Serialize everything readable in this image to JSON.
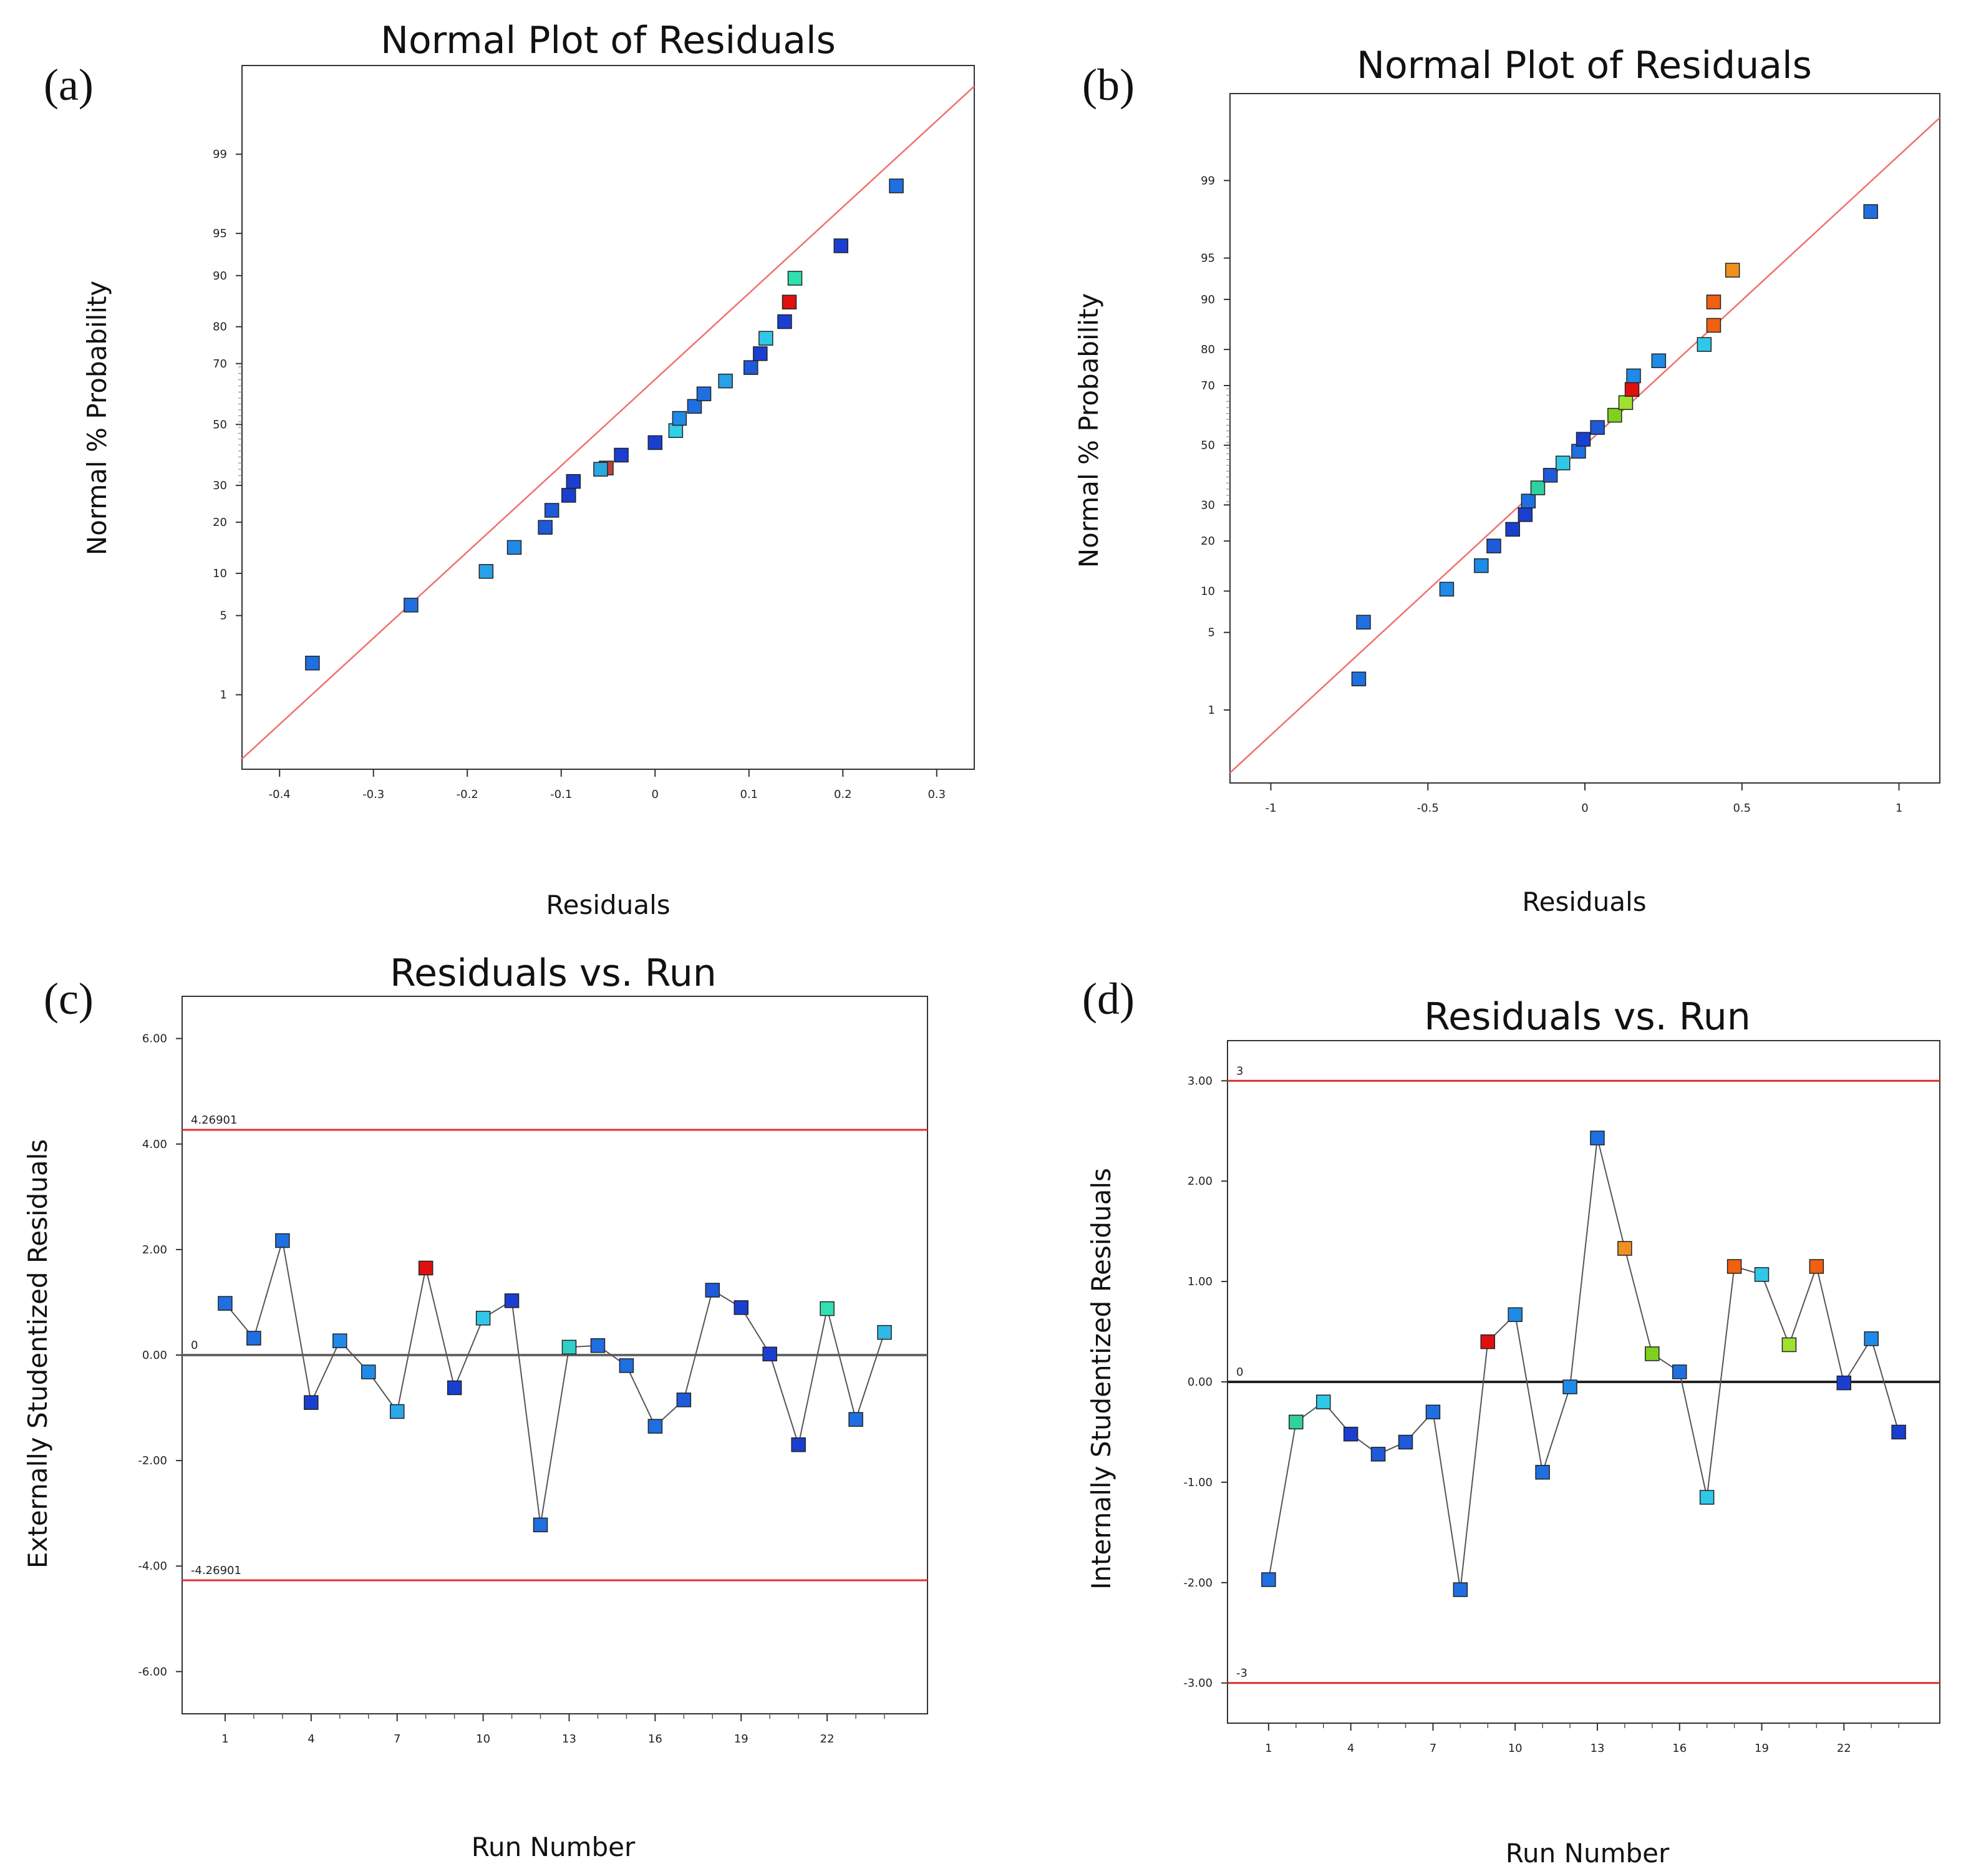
{
  "panel_labels": [
    "(a)",
    "(b)",
    "(c)",
    "(d)"
  ],
  "chart_data": [
    {
      "type": "scatter",
      "panel": "(a)",
      "title": "Normal Plot of Residuals",
      "xlabel": "Residuals",
      "ylabel": "Normal % Probability",
      "xlim": [
        -0.44,
        0.34
      ],
      "x_ticks": [
        -0.4,
        -0.3,
        -0.2,
        -0.1,
        0,
        0.1,
        0.2,
        0.3
      ],
      "x_tick_labels": [
        "-0.4",
        "-0.3",
        "-0.2",
        "-0.1",
        "0",
        "0.1",
        "0.2",
        "0.3"
      ],
      "y_scale": "normal-probability",
      "ylim": [
        0.15,
        99.9
      ],
      "y_ticks": [
        1,
        5,
        10,
        20,
        30,
        50,
        70,
        80,
        90,
        95,
        99
      ],
      "y_tick_labels": [
        "1",
        "5",
        "10",
        "20",
        "30",
        "50",
        "70",
        "80",
        "90",
        "95",
        "99"
      ],
      "fit_line": {
        "x": [
          -0.44,
          0.34
        ],
        "y": [
          0.2,
          99.82
        ],
        "color": "#f07070"
      },
      "points": [
        {
          "x": -0.365,
          "y": 2.0,
          "color": "#1f6fe0"
        },
        {
          "x": -0.26,
          "y": 6.0,
          "color": "#1f6fe0"
        },
        {
          "x": -0.18,
          "y": 10.3,
          "color": "#2aa0e8"
        },
        {
          "x": -0.15,
          "y": 14.5,
          "color": "#1f8ae8"
        },
        {
          "x": -0.117,
          "y": 18.8,
          "color": "#1f5ad8"
        },
        {
          "x": -0.11,
          "y": 23.0,
          "color": "#1f5ad8"
        },
        {
          "x": -0.092,
          "y": 27.1,
          "color": "#1a3fd0"
        },
        {
          "x": -0.087,
          "y": 31.2,
          "color": "#1a3fd0"
        },
        {
          "x": -0.052,
          "y": 35.4,
          "color": "#c04040"
        },
        {
          "x": -0.058,
          "y": 35.0,
          "color": "#2aa8e0"
        },
        {
          "x": -0.036,
          "y": 39.6,
          "color": "#1a3fd0"
        },
        {
          "x": 0.0,
          "y": 43.8,
          "color": "#1a3fd0"
        },
        {
          "x": 0.022,
          "y": 47.9,
          "color": "#30d0e8"
        },
        {
          "x": 0.026,
          "y": 52.1,
          "color": "#1f8ae8"
        },
        {
          "x": 0.042,
          "y": 56.2,
          "color": "#1f6fe0"
        },
        {
          "x": 0.052,
          "y": 60.4,
          "color": "#1f6fe0"
        },
        {
          "x": 0.075,
          "y": 64.6,
          "color": "#2aa0e8"
        },
        {
          "x": 0.102,
          "y": 68.8,
          "color": "#1f5ad8"
        },
        {
          "x": 0.112,
          "y": 72.9,
          "color": "#1a3fd0"
        },
        {
          "x": 0.118,
          "y": 77.1,
          "color": "#30c8e8"
        },
        {
          "x": 0.138,
          "y": 81.2,
          "color": "#1a3fd0"
        },
        {
          "x": 0.143,
          "y": 85.4,
          "color": "#e01010"
        },
        {
          "x": 0.149,
          "y": 89.6,
          "color": "#30e0b0"
        },
        {
          "x": 0.198,
          "y": 93.8,
          "color": "#1a3fd0"
        },
        {
          "x": 0.257,
          "y": 98.0,
          "color": "#1f6fe0"
        }
      ]
    },
    {
      "type": "scatter",
      "panel": "(b)",
      "title": "Normal Plot of Residuals",
      "xlabel": "Residuals",
      "ylabel": "Normal % Probability",
      "xlim": [
        -1.13,
        1.13
      ],
      "x_ticks": [
        -1,
        -0.5,
        0,
        0.5,
        1
      ],
      "x_tick_labels": [
        "-1",
        "-0.5",
        "0",
        "0.5",
        "1"
      ],
      "y_scale": "normal-probability",
      "ylim": [
        0.15,
        99.9
      ],
      "y_ticks": [
        1,
        5,
        10,
        20,
        30,
        50,
        70,
        80,
        90,
        95,
        99
      ],
      "y_tick_labels": [
        "1",
        "5",
        "10",
        "20",
        "30",
        "50",
        "70",
        "80",
        "90",
        "95",
        "99"
      ],
      "fit_line": {
        "x": [
          -1.13,
          1.13
        ],
        "y": [
          0.2,
          99.8
        ],
        "color": "#f07070"
      },
      "points": [
        {
          "x": -0.72,
          "y": 2.0,
          "color": "#1f6fe0"
        },
        {
          "x": -0.705,
          "y": 6.0,
          "color": "#1f6fe0"
        },
        {
          "x": -0.44,
          "y": 10.3,
          "color": "#1f8ae8"
        },
        {
          "x": -0.33,
          "y": 14.5,
          "color": "#1f8ae8"
        },
        {
          "x": -0.29,
          "y": 18.8,
          "color": "#1f5ad8"
        },
        {
          "x": -0.23,
          "y": 23.0,
          "color": "#1a3fd0"
        },
        {
          "x": -0.19,
          "y": 27.1,
          "color": "#1a3fd0"
        },
        {
          "x": -0.18,
          "y": 31.2,
          "color": "#1f6fe0"
        },
        {
          "x": -0.15,
          "y": 35.4,
          "color": "#30d0a0"
        },
        {
          "x": -0.11,
          "y": 39.6,
          "color": "#1f5ad8"
        },
        {
          "x": -0.07,
          "y": 43.8,
          "color": "#30c8e8"
        },
        {
          "x": -0.02,
          "y": 47.9,
          "color": "#1f6fe0"
        },
        {
          "x": -0.005,
          "y": 52.1,
          "color": "#1a3fd0"
        },
        {
          "x": 0.04,
          "y": 56.2,
          "color": "#1f5ad8"
        },
        {
          "x": 0.095,
          "y": 60.4,
          "color": "#80d020"
        },
        {
          "x": 0.13,
          "y": 64.6,
          "color": "#a0e030"
        },
        {
          "x": 0.15,
          "y": 68.8,
          "color": "#e01010"
        },
        {
          "x": 0.155,
          "y": 72.9,
          "color": "#1f8ae8"
        },
        {
          "x": 0.235,
          "y": 77.1,
          "color": "#1f8ae8"
        },
        {
          "x": 0.38,
          "y": 81.2,
          "color": "#30c8e8"
        },
        {
          "x": 0.41,
          "y": 85.4,
          "color": "#f06010"
        },
        {
          "x": 0.41,
          "y": 89.6,
          "color": "#f06010"
        },
        {
          "x": 0.47,
          "y": 93.8,
          "color": "#f09020"
        },
        {
          "x": 0.91,
          "y": 98.0,
          "color": "#1f6fe0"
        }
      ]
    },
    {
      "type": "line",
      "panel": "(c)",
      "title": "Residuals vs. Run",
      "xlabel": "Run Number",
      "ylabel": "Externally Studentized Residuals",
      "xlim": [
        -0.5,
        25.5
      ],
      "x_ticks": [
        1,
        4,
        7,
        10,
        13,
        16,
        19,
        22
      ],
      "x_tick_labels": [
        "1",
        "4",
        "7",
        "10",
        "13",
        "16",
        "19",
        "22"
      ],
      "ylim": [
        -6.8,
        6.8
      ],
      "y_ticks": [
        6,
        4,
        2,
        0,
        -2,
        -4,
        -6
      ],
      "y_tick_labels": [
        "6.00",
        "4.00",
        "2.00",
        "0.00",
        "-2.00",
        "-4.00",
        "-6.00"
      ],
      "reference_lines": [
        {
          "value": 4.26901,
          "label": "4.26901",
          "color": "#e03030"
        },
        {
          "value": 0,
          "label": "0",
          "color": "#666666"
        },
        {
          "value": -4.26901,
          "label": "-4.26901",
          "color": "#e03030"
        }
      ],
      "x": [
        1,
        2,
        3,
        4,
        5,
        6,
        7,
        8,
        9,
        10,
        11,
        12,
        13,
        14,
        15,
        16,
        17,
        18,
        19,
        20,
        21,
        22,
        23,
        24
      ],
      "values": [
        0.98,
        0.32,
        2.17,
        -0.9,
        0.27,
        -0.32,
        -1.07,
        1.65,
        -0.62,
        0.7,
        1.03,
        -3.22,
        0.15,
        0.18,
        -0.2,
        -1.35,
        -0.85,
        1.23,
        0.9,
        0.02,
        -1.7,
        0.88,
        -1.22,
        0.43
      ],
      "colors": [
        "#1f6fe0",
        "#1f6fe0",
        "#1f6fe0",
        "#1a3fd0",
        "#1f8ae8",
        "#1f8ae8",
        "#2aa8e8",
        "#e01010",
        "#1a3fd0",
        "#30c8e8",
        "#1a3fd0",
        "#1f6fe0",
        "#30d0c8",
        "#1f6fe0",
        "#1f6fe0",
        "#1f6fe0",
        "#1f5ad8",
        "#1f5ad8",
        "#1a3fd0",
        "#1a3fd0",
        "#1a3fd0",
        "#30e0b0",
        "#1f6fe0",
        "#30b8e8"
      ]
    },
    {
      "type": "line",
      "panel": "(d)",
      "title": "Residuals vs. Run",
      "xlabel": "Run Number",
      "ylabel": "Internally Studentized Residuals",
      "xlim": [
        -0.5,
        25.5
      ],
      "x_ticks": [
        1,
        4,
        7,
        10,
        13,
        16,
        19,
        22
      ],
      "x_tick_labels": [
        "1",
        "4",
        "7",
        "10",
        "13",
        "16",
        "19",
        "22"
      ],
      "ylim": [
        -3.4,
        3.4
      ],
      "y_ticks": [
        3,
        2,
        1,
        0,
        -1,
        -2,
        -3
      ],
      "y_tick_labels": [
        "3.00",
        "2.00",
        "1.00",
        "0.00",
        "-1.00",
        "-2.00",
        "-3.00"
      ],
      "reference_lines": [
        {
          "value": 3,
          "label": "3",
          "color": "#e03030"
        },
        {
          "value": 0,
          "label": "0",
          "color": "#222222"
        },
        {
          "value": -3,
          "label": "-3",
          "color": "#e03030"
        }
      ],
      "x": [
        1,
        2,
        3,
        4,
        5,
        6,
        7,
        8,
        9,
        10,
        11,
        12,
        13,
        14,
        15,
        16,
        17,
        18,
        19,
        20,
        21,
        22,
        23,
        24
      ],
      "values": [
        -1.97,
        -0.4,
        -0.2,
        -0.52,
        -0.72,
        -0.6,
        -0.3,
        -2.07,
        0.4,
        0.67,
        -0.9,
        -0.05,
        2.43,
        1.33,
        0.28,
        0.1,
        -1.15,
        1.15,
        1.07,
        0.37,
        1.15,
        -0.01,
        0.43,
        -0.5
      ],
      "colors": [
        "#1f6fe0",
        "#30d0a0",
        "#30c8e8",
        "#1a3fd0",
        "#1f5ad8",
        "#1f5ad8",
        "#1f6fe0",
        "#1f6fe0",
        "#e01010",
        "#1f8ae8",
        "#1f6fe0",
        "#1f8ae8",
        "#1f6fe0",
        "#f09020",
        "#80d020",
        "#1f6fe0",
        "#30c8e8",
        "#f06010",
        "#30c8e8",
        "#a0e030",
        "#f06010",
        "#1a3fd0",
        "#1f8ae8",
        "#1a3fd0"
      ]
    }
  ]
}
